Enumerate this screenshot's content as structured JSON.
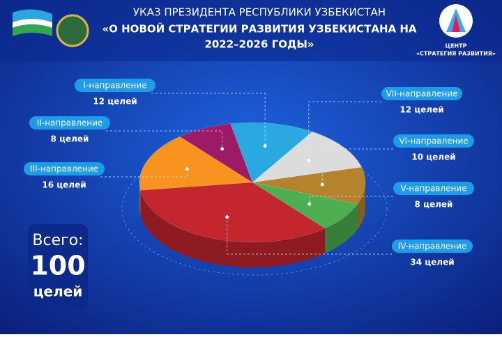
{
  "header": {
    "title_line1": "УКАЗ ПРЕЗИДЕНТА РЕСПУБЛИКИ УЗБЕКИСТАН",
    "title_line2": "«О НОВОЙ СТРАТЕГИИ РАЗВИТИЯ УЗБЕКИСТАНА НА",
    "title_line3": "2022–2026 ГОДЫ»",
    "logo_line1": "ЦЕНТР",
    "logo_line2": "«СТРАТЕГИЯ РАЗВИТИЯ»"
  },
  "chart_data": {
    "type": "pie",
    "categories": [
      "I-направление",
      "II-направление",
      "III-направление",
      "IV-направление",
      "V-направление",
      "VI-направление",
      "VII-направление"
    ],
    "values": [
      12,
      8,
      16,
      34,
      8,
      10,
      12
    ],
    "value_labels": [
      "12  целей",
      "8 целей",
      "16 целей",
      "34 целей",
      "8 целей",
      "10 целей",
      "12 целей"
    ],
    "colors": [
      "#2aa9e0",
      "#9c1a66",
      "#f7931e",
      "#c4262e",
      "#4caf50",
      "#b5832b",
      "#dcdcdc"
    ]
  },
  "total": {
    "label": "Всего:",
    "value": 100,
    "unit": "целей"
  }
}
